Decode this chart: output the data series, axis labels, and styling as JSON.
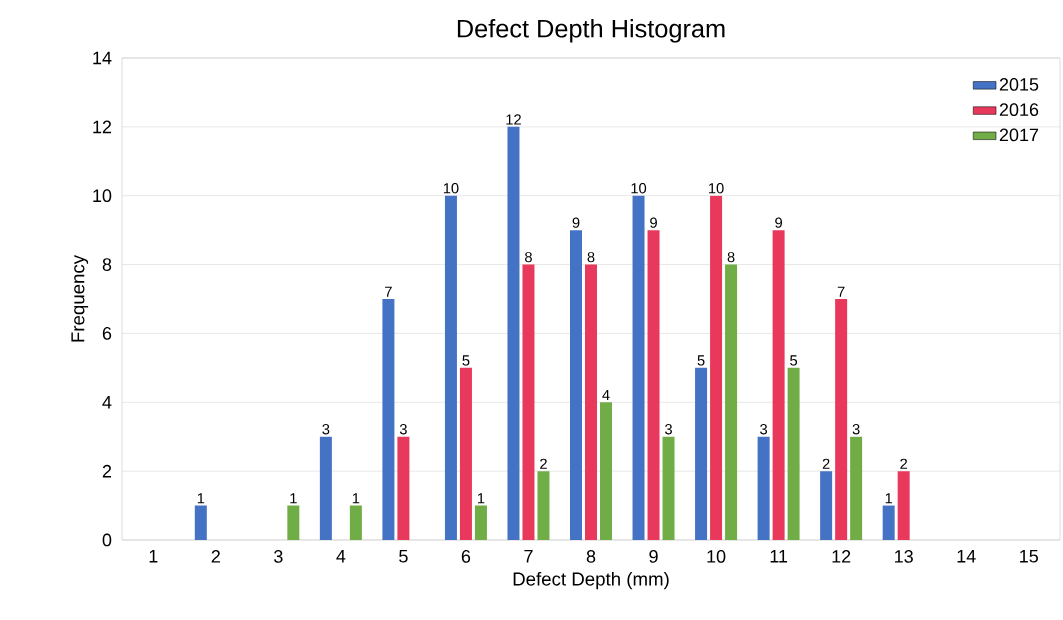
{
  "chart_data": {
    "type": "bar",
    "title": "Defect Depth Histogram",
    "xlabel": "Defect Depth (mm)",
    "ylabel": "Frequency",
    "categories": [
      "1",
      "2",
      "3",
      "4",
      "5",
      "6",
      "7",
      "8",
      "9",
      "10",
      "11",
      "12",
      "13",
      "14",
      "15"
    ],
    "series": [
      {
        "name": "2015",
        "color": "#4472c4",
        "values": [
          0,
          1,
          0,
          3,
          7,
          10,
          12,
          9,
          10,
          5,
          3,
          2,
          1,
          0,
          0
        ],
        "value_labels": [
          null,
          "1",
          null,
          "3",
          "7",
          "10",
          "12",
          "9",
          "10",
          "5",
          "3",
          "2",
          "1",
          null,
          null
        ]
      },
      {
        "name": "2016",
        "color": "#e8385b",
        "values": [
          0,
          0,
          0,
          0,
          3,
          5,
          8,
          8,
          9,
          10,
          9,
          7,
          2,
          0,
          0
        ],
        "value_labels": [
          null,
          null,
          null,
          null,
          "3",
          "5",
          "8",
          "8",
          "9",
          "10",
          "9",
          "7",
          "2",
          null,
          null
        ]
      },
      {
        "name": "2017",
        "color": "#70ad47",
        "values": [
          0,
          0,
          1,
          1,
          0,
          1,
          2,
          4,
          3,
          8,
          5,
          3,
          0,
          0,
          0
        ],
        "value_labels": [
          null,
          null,
          "1",
          "1",
          null,
          "1",
          "2",
          "4",
          "3",
          "8",
          "5",
          "3",
          null,
          null,
          null
        ]
      }
    ],
    "ylim": [
      0,
      14
    ],
    "yticks": [
      0,
      2,
      4,
      6,
      8,
      10,
      12,
      14
    ],
    "grid": "y",
    "legend": "top right"
  }
}
